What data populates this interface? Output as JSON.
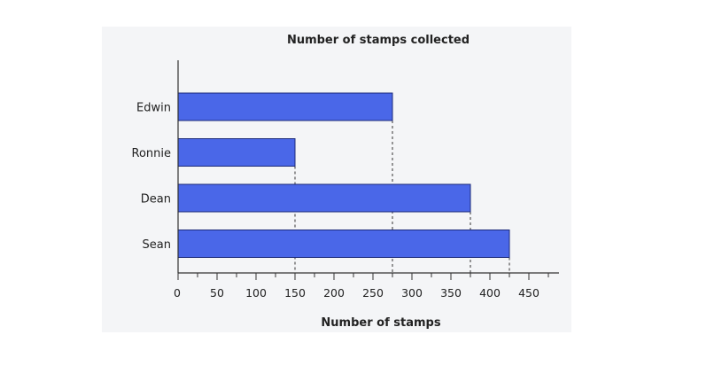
{
  "chart_data": {
    "type": "bar",
    "orientation": "horizontal",
    "title": "Number of stamps collected",
    "xlabel": "Number of stamps",
    "ylabel": "",
    "categories": [
      "Edwin",
      "Ronnie",
      "Dean",
      "Sean"
    ],
    "values": [
      275,
      150,
      375,
      425
    ],
    "xlim": [
      0,
      490
    ],
    "xticks": [
      0,
      50,
      100,
      150,
      200,
      250,
      300,
      350,
      400,
      450
    ],
    "grid": false,
    "dashed_guides": true,
    "bar_color": "#4a67e8",
    "legend": "none"
  }
}
